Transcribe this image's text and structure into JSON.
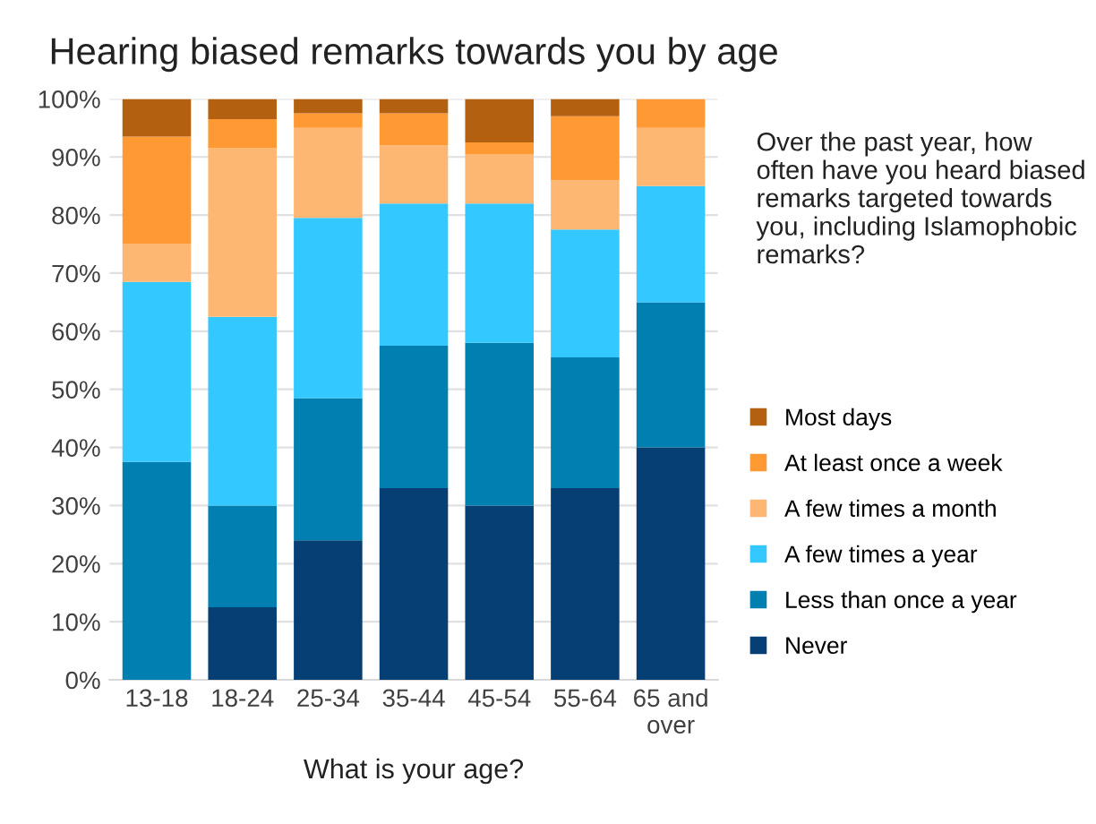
{
  "chart_data": {
    "type": "bar",
    "stacked": true,
    "title": "Hearing biased remarks towards you by age",
    "xlabel": "What is your age?",
    "legend_title": "Over the past year, how often have you heard biased remarks targeted towards you, including Islamophobic remarks?",
    "categories": [
      "13-18",
      "18-24",
      "25-34",
      "35-44",
      "45-54",
      "55-64",
      "65 and\nover"
    ],
    "series": [
      {
        "name": "Never",
        "color": "#053f74",
        "values": [
          0,
          12.5,
          24,
          33,
          30,
          33,
          40
        ]
      },
      {
        "name": "Less than once a year",
        "color": "#0080b0",
        "values": [
          37.5,
          17.5,
          24.5,
          24.5,
          28,
          22.5,
          25
        ]
      },
      {
        "name": "A few times a year",
        "color": "#33c8ff",
        "values": [
          31,
          32.5,
          31,
          24.5,
          24,
          22,
          20
        ]
      },
      {
        "name": "A few times a month",
        "color": "#feb673",
        "values": [
          6.5,
          29,
          15.5,
          10,
          8.5,
          8.5,
          10
        ]
      },
      {
        "name": "At least once a week",
        "color": "#fe9933",
        "values": [
          18.5,
          5,
          2.5,
          5.5,
          2,
          11,
          5
        ]
      },
      {
        "name": "Most days",
        "color": "#b36111",
        "values": [
          6.5,
          3.5,
          2.5,
          2.5,
          7.5,
          3,
          0
        ]
      }
    ],
    "ylim": [
      0,
      100
    ],
    "yticks": [
      {
        "value": 0,
        "label": "0%"
      },
      {
        "value": 10,
        "label": "10%"
      },
      {
        "value": 20,
        "label": "20%"
      },
      {
        "value": 30,
        "label": "30%"
      },
      {
        "value": 40,
        "label": "40%"
      },
      {
        "value": 50,
        "label": "50%"
      },
      {
        "value": 60,
        "label": "60%"
      },
      {
        "value": 70,
        "label": "70%"
      },
      {
        "value": 80,
        "label": "80%"
      },
      {
        "value": 90,
        "label": "90%"
      },
      {
        "value": 100,
        "label": "100%"
      }
    ],
    "grid": "y",
    "legend": "right"
  }
}
